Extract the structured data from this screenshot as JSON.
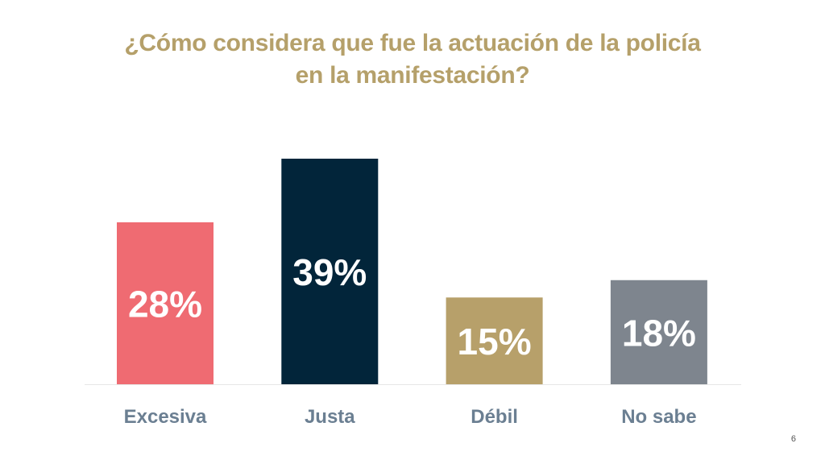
{
  "page_number": "6",
  "chart_data": {
    "type": "bar",
    "title_line1": "¿Cómo considera que fue la actuación de la policía",
    "title_line2": "en la manifestación?",
    "xlabel": "",
    "ylabel": "",
    "ylim": [
      0,
      40
    ],
    "grid": false,
    "legend": "none",
    "categories": [
      "Excesiva",
      "Justa",
      "Débil",
      "No sabe"
    ],
    "values": [
      28,
      39,
      15,
      18
    ],
    "data_labels": [
      "28%",
      "39%",
      "15%",
      "18%"
    ],
    "colors": [
      "#ef6b72",
      "#02253a",
      "#b7a06a",
      "#7e858e"
    ],
    "label_color": "#6b7f92",
    "value_label_color": "#ffffff"
  }
}
